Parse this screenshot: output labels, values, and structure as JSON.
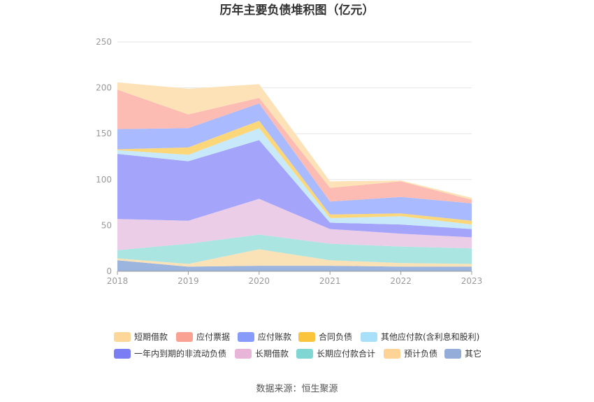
{
  "chart_data": {
    "type": "area",
    "stacked": true,
    "title": "历年主要负债堆积图（亿元）",
    "x": [
      "2018",
      "2019",
      "2020",
      "2021",
      "2022",
      "2023"
    ],
    "ylim": [
      0,
      250
    ],
    "yticks": [
      0,
      50,
      100,
      150,
      200,
      250
    ],
    "grid": true,
    "legend_position": "bottom",
    "series": [
      {
        "name": "其它",
        "color": "#9bb5df",
        "values": [
          12,
          5,
          6,
          6,
          5,
          5
        ]
      },
      {
        "name": "预计负债",
        "color": "#fbe1b6",
        "values": [
          2,
          3,
          18,
          6,
          4,
          3
        ]
      },
      {
        "name": "长期应付款合计",
        "color": "#aae5e2",
        "values": [
          9,
          22,
          16,
          18,
          18,
          17
        ]
      },
      {
        "name": "长期借款",
        "color": "#eccde7",
        "values": [
          34,
          25,
          39,
          16,
          14,
          12
        ]
      },
      {
        "name": "一年内到期的非流动负债",
        "color": "#a3a4fa",
        "values": [
          71,
          65,
          64,
          7,
          10,
          9
        ]
      },
      {
        "name": "其他应付款(含利息和股利)",
        "color": "#c7e9f9",
        "values": [
          4,
          7,
          13,
          5,
          9,
          5
        ]
      },
      {
        "name": "合同负债",
        "color": "#fcd779",
        "values": [
          1,
          8,
          8,
          4,
          3,
          4
        ]
      },
      {
        "name": "应付账款",
        "color": "#a9baff",
        "values": [
          22,
          21,
          19,
          14,
          18,
          19
        ]
      },
      {
        "name": "应付票据",
        "color": "#fcbcb3",
        "values": [
          43,
          15,
          6,
          15,
          17,
          4
        ]
      },
      {
        "name": "短期借款",
        "color": "#fde2b7",
        "values": [
          8,
          28,
          15,
          7,
          1,
          2
        ]
      }
    ],
    "legend_order": [
      "短期借款",
      "应付票据",
      "应付账款",
      "合同负债",
      "其他应付款(含利息和股利)",
      "一年内到期的非流动负债",
      "长期借款",
      "长期应付款合计",
      "预计负债",
      "其它"
    ],
    "legend_colors": {
      "短期借款": "#fdd69a",
      "应付票据": "#f9a293",
      "应付账款": "#879bfb",
      "合同负债": "#fbc43d",
      "其他应付款(含利息和股利)": "#a8dff9",
      "一年内到期的非流动负债": "#7b7df2",
      "长期借款": "#e8b5d9",
      "长期应付款合计": "#7fd6d3",
      "预计负债": "#fdd496",
      "其它": "#93acd8"
    }
  },
  "source_label": "数据来源：恒生聚源"
}
